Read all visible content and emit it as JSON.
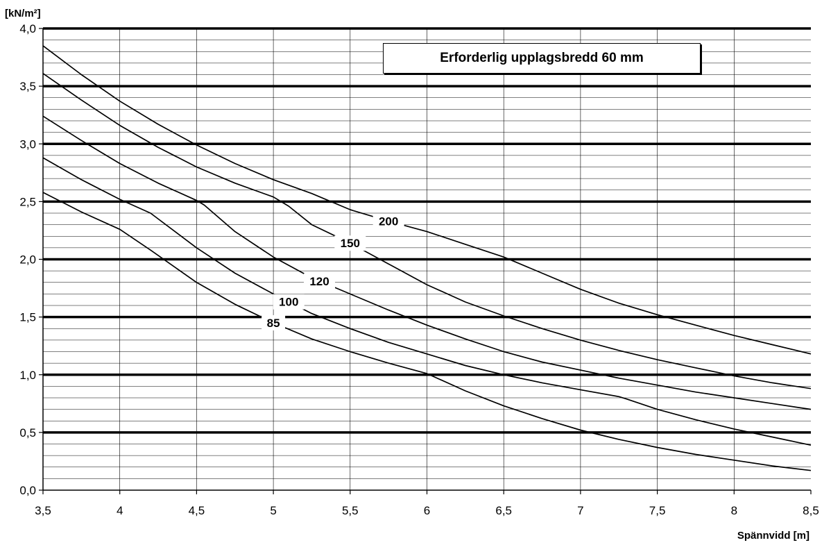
{
  "chart_data": {
    "type": "line",
    "title": "Erforderlig upplagsbredd 60 mm",
    "xlabel": "Spännvidd [m]",
    "ylabel": "[kN/m²]",
    "xlim": [
      3.5,
      8.5
    ],
    "ylim": [
      0.0,
      4.0
    ],
    "xticks": [
      "3,5",
      "4",
      "4,5",
      "5",
      "5,5",
      "6",
      "6,5",
      "7",
      "7,5",
      "8",
      "8,5"
    ],
    "yticks": [
      "0,0",
      "0,5",
      "1,0",
      "1,5",
      "2,0",
      "2,5",
      "3,0",
      "3,5",
      "4,0"
    ],
    "grid": true,
    "series": [
      {
        "name": "200",
        "x": [
          3.5,
          3.75,
          4.0,
          4.25,
          4.5,
          4.75,
          5.0,
          5.25,
          5.5,
          5.75,
          6.0,
          6.25,
          6.5,
          6.75,
          7.0,
          7.25,
          7.5,
          7.75,
          8.0,
          8.25,
          8.5
        ],
        "y": [
          3.85,
          3.6,
          3.37,
          3.17,
          2.99,
          2.83,
          2.69,
          2.57,
          2.43,
          2.33,
          2.24,
          2.13,
          2.02,
          1.88,
          1.74,
          1.62,
          1.52,
          1.43,
          1.34,
          1.26,
          1.18
        ],
        "color": "#000000"
      },
      {
        "name": "150",
        "x": [
          3.5,
          3.75,
          4.0,
          4.25,
          4.5,
          4.75,
          5.0,
          5.1,
          5.25,
          5.5,
          5.75,
          6.0,
          6.25,
          6.5,
          6.75,
          7.0,
          7.25,
          7.5,
          7.75,
          8.0,
          8.25,
          8.5
        ],
        "y": [
          3.61,
          3.38,
          3.16,
          2.97,
          2.8,
          2.66,
          2.54,
          2.46,
          2.3,
          2.14,
          1.96,
          1.78,
          1.63,
          1.51,
          1.4,
          1.3,
          1.21,
          1.13,
          1.06,
          0.99,
          0.93,
          0.88
        ],
        "color": "#000000"
      },
      {
        "name": "120",
        "x": [
          3.5,
          3.75,
          4.0,
          4.25,
          4.5,
          4.55,
          4.75,
          5.0,
          5.25,
          5.5,
          5.75,
          6.0,
          6.25,
          6.5,
          6.75,
          7.0,
          7.25,
          7.5,
          7.75,
          8.0,
          8.25,
          8.5
        ],
        "y": [
          3.24,
          3.03,
          2.83,
          2.66,
          2.51,
          2.47,
          2.24,
          2.02,
          1.84,
          1.7,
          1.56,
          1.43,
          1.31,
          1.2,
          1.11,
          1.04,
          0.97,
          0.91,
          0.85,
          0.8,
          0.75,
          0.7
        ],
        "color": "#000000"
      },
      {
        "name": "100",
        "x": [
          3.5,
          3.75,
          4.0,
          4.2,
          4.5,
          4.75,
          5.0,
          5.25,
          5.5,
          5.75,
          6.0,
          6.25,
          6.5,
          6.75,
          7.0,
          7.25,
          7.3,
          7.5,
          7.75,
          8.0,
          8.25,
          8.5
        ],
        "y": [
          2.88,
          2.69,
          2.52,
          2.4,
          2.1,
          1.88,
          1.7,
          1.53,
          1.4,
          1.28,
          1.18,
          1.08,
          1.0,
          0.93,
          0.87,
          0.81,
          0.79,
          0.7,
          0.61,
          0.53,
          0.46,
          0.39
        ],
        "color": "#000000"
      },
      {
        "name": "85",
        "x": [
          3.5,
          3.75,
          4.0,
          4.2,
          4.5,
          4.75,
          5.0,
          5.25,
          5.5,
          5.75,
          6.0,
          6.25,
          6.5,
          6.75,
          7.0,
          7.25,
          7.5,
          7.75,
          8.0,
          8.25,
          8.5
        ],
        "y": [
          2.58,
          2.41,
          2.26,
          2.08,
          1.8,
          1.61,
          1.45,
          1.31,
          1.2,
          1.1,
          1.01,
          0.86,
          0.73,
          0.62,
          0.52,
          0.44,
          0.37,
          0.31,
          0.26,
          0.21,
          0.17
        ],
        "color": "#000000"
      }
    ]
  }
}
